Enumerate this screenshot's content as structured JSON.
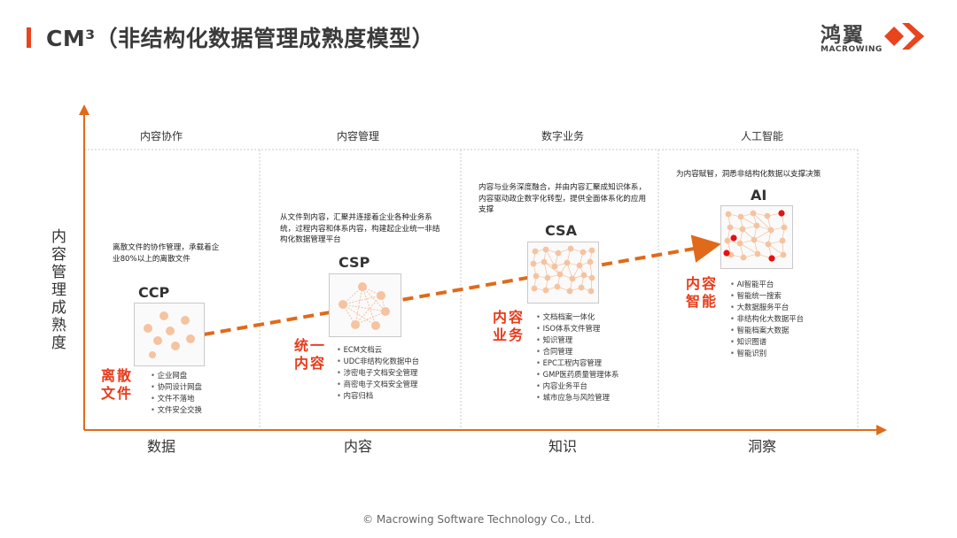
{
  "header": {
    "title": "CM³（非结构化数据管理成熟度模型）",
    "logo_cn": "鸿翼",
    "logo_en": "MACROWING"
  },
  "y_axis_label": "内容管理成熟度",
  "columns": [
    {
      "head": "内容协作",
      "foot": "数据",
      "desc": "离散文件的协作管理，承载着企业80%以上的离散文件",
      "model": "CCP",
      "tag": [
        "离散",
        "文件"
      ],
      "items": [
        "企业网盘",
        "协同设计网盘",
        "文件不落地",
        "文件安全交换"
      ]
    },
    {
      "head": "内容管理",
      "foot": "内容",
      "desc": "从文件到内容，汇聚并连接着企业各种业务系统，过程内容和体系内容，构建起企业统一非结构化数据管理平台",
      "model": "CSP",
      "tag": [
        "统一",
        "内容"
      ],
      "items": [
        "ECM文档云",
        "UDC非结构化数据中台",
        "涉密电子文档安全管理",
        "商密电子文档安全管理",
        "内容归档"
      ]
    },
    {
      "head": "数字业务",
      "foot": "知识",
      "desc": "内容与业务深度融合，并由内容汇聚成知识体系，内容驱动政企数字化转型，提供全面体系化的应用支撑",
      "model": "CSA",
      "tag": [
        "内容",
        "业务"
      ],
      "items": [
        "文档档案一体化",
        "ISO体系文件管理",
        "知识管理",
        "合同管理",
        "EPC工程内容管理",
        "GMP医药质量管理体系",
        "内容业务平台",
        "城市应急与风险管理"
      ]
    },
    {
      "head": "人工智能",
      "foot": "洞察",
      "desc": "为内容赋智，洞悉非结构化数据以支撑决策",
      "model": "AI",
      "tag": [
        "内容",
        "智能"
      ],
      "items": [
        "AI智能平台",
        "智能统一搜索",
        "大数据服务平台",
        "非结构化大数据平台",
        "智能档案大数据",
        "知识图谱",
        "智能识别"
      ]
    }
  ],
  "footer": "© Macrowing Software Technology Co., Ltd.",
  "colors": {
    "accent": "#e8441e",
    "arrow": "#e06a1a",
    "dot": "#f5c4a2",
    "red_dot": "#e81010"
  }
}
